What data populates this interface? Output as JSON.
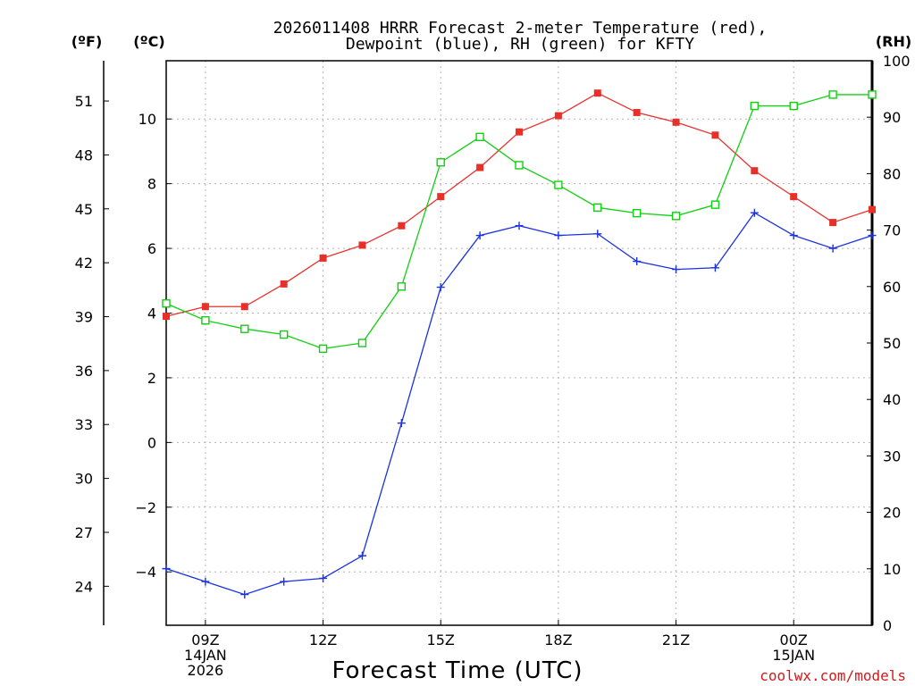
{
  "title_lines": [
    "2026011408 HRRR Forecast 2-meter Temperature (red),",
    "Dewpoint (blue), RH (green) for KFTY"
  ],
  "credit": "coolwx.com/models",
  "colors": {
    "temperature": "#e8302a",
    "dewpoint": "#1a32e0",
    "rh": "#10d010",
    "axis": "#000000",
    "grid": "#b4b4b4",
    "credit": "#d11a1a"
  },
  "chart_data": {
    "type": "line",
    "title": "2026011408 HRRR Forecast 2-meter Temperature (red), Dewpoint (blue), RH (green) for KFTY",
    "xlabel": "Forecast Time (UTC)",
    "x_unit": "forecast hour from 2026-01-14 08Z",
    "xlim": [
      0,
      18
    ],
    "x": [
      0,
      1,
      2,
      3,
      4,
      5,
      6,
      7,
      8,
      9,
      10,
      11,
      12,
      13,
      14,
      15,
      16,
      17,
      18
    ],
    "x_ticks": [
      {
        "x": 1,
        "lines": [
          "09Z",
          "14JAN",
          "2026"
        ]
      },
      {
        "x": 4,
        "lines": [
          "12Z"
        ]
      },
      {
        "x": 7,
        "lines": [
          "15Z"
        ]
      },
      {
        "x": 10,
        "lines": [
          "18Z"
        ]
      },
      {
        "x": 13,
        "lines": [
          "21Z"
        ]
      },
      {
        "x": 16,
        "lines": [
          "00Z",
          "15JAN"
        ]
      }
    ],
    "left_axis_c": {
      "label": "(ºC)",
      "lim": [
        -5.65,
        11.8
      ],
      "ticks": [
        -4,
        -2,
        0,
        2,
        4,
        6,
        8,
        10
      ]
    },
    "left_axis_f": {
      "label": "(ºF)",
      "ticks": [
        24,
        27,
        30,
        33,
        36,
        39,
        42,
        45,
        48,
        51
      ]
    },
    "right_axis": {
      "label": "(RH)",
      "lim": [
        0,
        100
      ],
      "ticks": [
        0,
        10,
        20,
        30,
        40,
        50,
        60,
        70,
        80,
        90,
        100
      ]
    },
    "series": [
      {
        "name": "2-meter Temperature",
        "axis": "left_c",
        "marker": "filled-square",
        "values": [
          3.9,
          4.2,
          4.2,
          4.9,
          5.7,
          6.1,
          6.7,
          7.6,
          8.5,
          9.6,
          10.1,
          10.8,
          10.2,
          9.9,
          9.5,
          8.4,
          7.6,
          6.8,
          7.2
        ]
      },
      {
        "name": "Dewpoint",
        "axis": "left_c",
        "marker": "plus",
        "values": [
          -3.9,
          -4.3,
          -4.7,
          -4.3,
          -4.2,
          -3.5,
          0.6,
          4.8,
          6.4,
          6.7,
          6.4,
          6.45,
          5.6,
          5.35,
          5.4,
          7.1,
          6.4,
          6.0,
          6.4
        ]
      },
      {
        "name": "RH",
        "axis": "right",
        "marker": "open-square",
        "values": [
          57,
          54,
          52.5,
          51.5,
          49,
          50,
          60,
          82,
          86.5,
          81.5,
          78,
          74,
          73,
          72.5,
          74.5,
          92,
          92,
          94,
          94
        ]
      }
    ]
  }
}
